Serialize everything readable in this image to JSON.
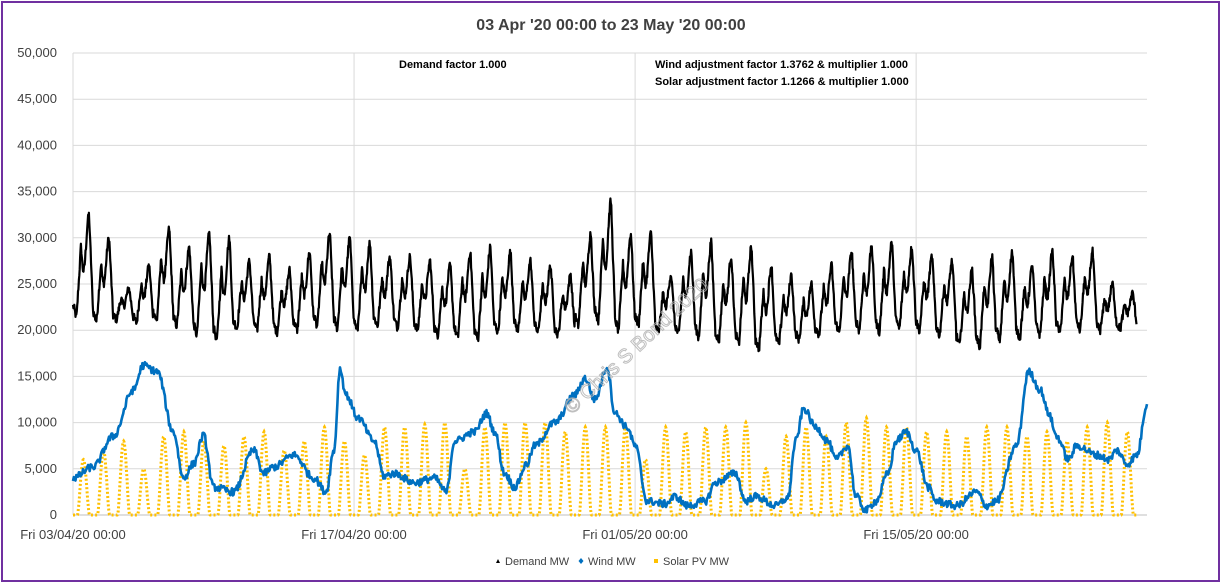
{
  "chart_data": {
    "type": "line",
    "title": "03 Apr '20 00:00 to 23 May '20 00:00",
    "xlabel": "",
    "ylabel": "",
    "ylim": [
      0,
      50000
    ],
    "yticks": [
      "0",
      "5,000",
      "10,000",
      "15,000",
      "20,000",
      "25,000",
      "30,000",
      "35,000",
      "40,000",
      "45,000",
      "50,000"
    ],
    "xticks": [
      "Fri 03/04/20 00:00",
      "Fri 17/04/20 00:00",
      "Fri 01/05/20 00:00",
      "Fri 15/05/20 00:00"
    ],
    "xrange_days": [
      0,
      53.5
    ],
    "grid": true,
    "legend_position": "bottom",
    "annotations": [
      "Demand factor 1.000",
      "Wind adjustment factor 1.3762 & multiplier 1.000",
      "Solar adjustment factor 1.1266 & multiplier 1.000"
    ],
    "watermark": "© Chris S Bond 2020",
    "series": [
      {
        "name": "Demand MW",
        "color": "#000000",
        "marker": "triangle",
        "day_min": [
          21500,
          21000,
          21200,
          20800,
          21000,
          20500,
          19500,
          19000,
          20200,
          20000,
          19800,
          20000,
          20500,
          20200,
          20000,
          20500,
          20300,
          20000,
          19500,
          19200,
          19000,
          19800,
          20000,
          19800,
          19500,
          20500,
          21000,
          20000,
          20500,
          19800,
          19500,
          19200,
          18800,
          18500,
          18000,
          18500,
          19000,
          19500,
          19800,
          20000,
          19800,
          20200,
          20000,
          19500,
          18500,
          18200,
          19000,
          19200,
          19500,
          19800,
          20000,
          20000,
          20200
        ],
        "day_peak": [
          32500,
          30000,
          24500,
          27000,
          31000,
          29000,
          30500,
          30000,
          27500,
          28000,
          26500,
          28500,
          30500,
          30000,
          29500,
          28000,
          28000,
          27500,
          27000,
          28500,
          29000,
          28500,
          27500,
          27000,
          26000,
          30500,
          34000,
          30500,
          30500,
          26000,
          28500,
          29500,
          28000,
          29000,
          27000,
          26000,
          25000,
          27000,
          28500,
          29000,
          29500,
          29000,
          28000,
          27500,
          26500,
          28000,
          28500,
          27000,
          28500,
          28000,
          28500,
          25000,
          24000
        ]
      },
      {
        "name": "Wind MW",
        "color": "#0070C0",
        "marker": "diamond",
        "points": [
          [
            0,
            4000
          ],
          [
            1,
            5200
          ],
          [
            2,
            8500
          ],
          [
            3,
            13500
          ],
          [
            3.5,
            16200
          ],
          [
            4.2,
            15500
          ],
          [
            5,
            9000
          ],
          [
            5.5,
            4000
          ],
          [
            6,
            5500
          ],
          [
            6.5,
            8600
          ],
          [
            7,
            3000
          ],
          [
            8,
            2500
          ],
          [
            9,
            7000
          ],
          [
            9.5,
            4500
          ],
          [
            10,
            5200
          ],
          [
            11,
            6500
          ],
          [
            12,
            4000
          ],
          [
            12.6,
            2500
          ],
          [
            13,
            7000
          ],
          [
            13.3,
            15800
          ],
          [
            13.6,
            13000
          ],
          [
            14.2,
            10500
          ],
          [
            15,
            8000
          ],
          [
            15.5,
            4200
          ],
          [
            16,
            4500
          ],
          [
            17,
            3500
          ],
          [
            18,
            4000
          ],
          [
            18.6,
            2500
          ],
          [
            19,
            8000
          ],
          [
            20,
            9000
          ],
          [
            20.6,
            11000
          ],
          [
            21,
            9000
          ],
          [
            21.5,
            4500
          ],
          [
            22,
            3000
          ],
          [
            22.6,
            5500
          ],
          [
            23,
            7500
          ],
          [
            24,
            10000
          ],
          [
            25,
            13000
          ],
          [
            25.5,
            14800
          ],
          [
            26,
            12500
          ],
          [
            26.6,
            16000
          ],
          [
            27,
            11000
          ],
          [
            27.6,
            9500
          ],
          [
            28,
            7500
          ],
          [
            28.6,
            1500
          ],
          [
            29.5,
            1200
          ],
          [
            30,
            2000
          ],
          [
            30.6,
            1000
          ],
          [
            31.5,
            1500
          ],
          [
            32,
            3500
          ],
          [
            33,
            4500
          ],
          [
            33.5,
            1500
          ],
          [
            34,
            2000
          ],
          [
            35,
            1000
          ],
          [
            35.6,
            1800
          ],
          [
            36,
            8000
          ],
          [
            36.4,
            11500
          ],
          [
            37,
            9500
          ],
          [
            37.6,
            8000
          ],
          [
            38,
            6000
          ],
          [
            38.6,
            7500
          ],
          [
            39,
            2000
          ],
          [
            39.5,
            500
          ],
          [
            40,
            1500
          ],
          [
            40.6,
            4500
          ],
          [
            41,
            8000
          ],
          [
            41.5,
            9000
          ],
          [
            42,
            7000
          ],
          [
            42.6,
            3000
          ],
          [
            43,
            1500
          ],
          [
            44,
            1000
          ],
          [
            45,
            2500
          ],
          [
            45.5,
            1000
          ],
          [
            46,
            1500
          ],
          [
            47,
            7500
          ],
          [
            47.6,
            15500
          ],
          [
            48.2,
            13500
          ],
          [
            48.6,
            11000
          ],
          [
            49,
            8500
          ],
          [
            49.6,
            6000
          ],
          [
            50,
            7500
          ],
          [
            51,
            6500
          ],
          [
            51.6,
            6000
          ],
          [
            52,
            7000
          ],
          [
            52.5,
            5500
          ],
          [
            53,
            6500
          ],
          [
            53.5,
            12000
          ]
        ]
      },
      {
        "name": "Solar PV MW",
        "color": "#FFC000",
        "marker": "square",
        "day_peak": [
          6000,
          7000,
          8000,
          5000,
          8500,
          9000,
          8000,
          7500,
          8500,
          9000,
          7000,
          8000,
          9500,
          8000,
          6500,
          9500,
          9500,
          9800,
          10000,
          5000,
          9500,
          10000,
          10000,
          10000,
          9000,
          9500,
          9500,
          9500,
          6000,
          9500,
          9000,
          9500,
          9500,
          10000,
          5000,
          8500,
          9500,
          8500,
          10000,
          10500,
          9500,
          9500,
          9000,
          9000,
          8500,
          9500,
          9500,
          8500,
          9000,
          8000,
          9500,
          10000,
          9000
        ]
      }
    ]
  }
}
